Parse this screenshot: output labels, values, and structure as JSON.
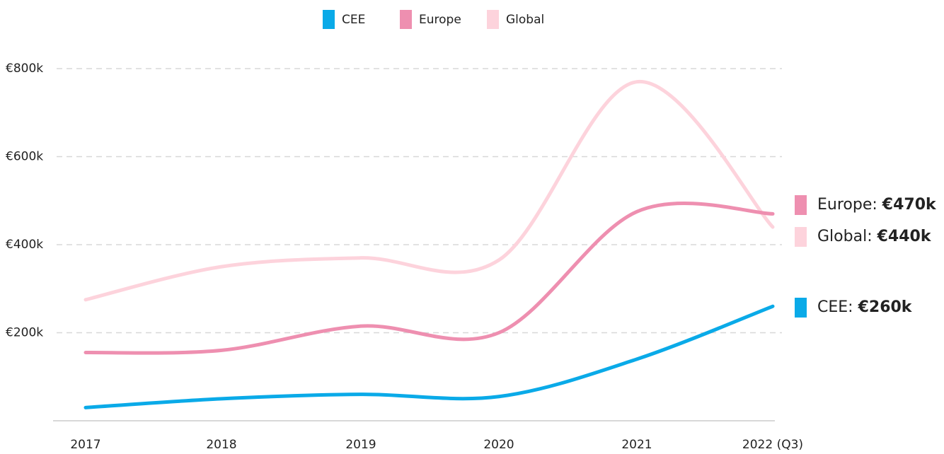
{
  "chart_data": {
    "type": "line",
    "categories": [
      "2017",
      "2018",
      "2019",
      "2020",
      "2021",
      "2022 (Q3)"
    ],
    "series": [
      {
        "name": "CEE",
        "color": "#0aaae8",
        "values": [
          30,
          50,
          60,
          55,
          140,
          260
        ],
        "value_labels": [
          null,
          null,
          null,
          null,
          null,
          "€260k"
        ]
      },
      {
        "name": "Europe",
        "color": "#ee8fb0",
        "values": [
          155,
          160,
          215,
          200,
          475,
          470
        ],
        "value_labels": [
          null,
          null,
          null,
          null,
          null,
          "€470k"
        ]
      },
      {
        "name": "Global",
        "color": "#fdd3dc",
        "values": [
          275,
          350,
          370,
          365,
          770,
          440
        ],
        "value_labels": [
          null,
          null,
          null,
          null,
          null,
          "€440k"
        ]
      }
    ],
    "ylim": [
      0,
      800
    ],
    "yticks": [
      {
        "value": 200,
        "label": "€200k"
      },
      {
        "value": 400,
        "label": "€400k"
      },
      {
        "value": 600,
        "label": "€600k"
      },
      {
        "value": 800,
        "label": "€800k"
      }
    ],
    "grid": true
  }
}
